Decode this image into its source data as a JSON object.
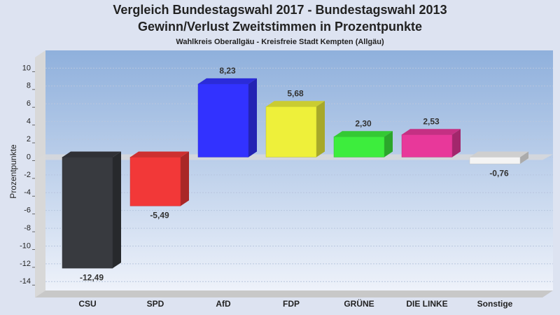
{
  "chart_data": {
    "type": "bar",
    "title": [
      "Vergleich Bundestagswahl 2017 - Bundestagswahl 2013",
      "Gewinn/Verlust Zweitstimmen in Prozentpunkte"
    ],
    "subtitle": "Wahlkreis Oberallgäu - Kreisfreie Stadt Kempten (Allgäu)",
    "y_label": "Prozentpunkte",
    "categories": [
      "CSU",
      "SPD",
      "AfD",
      "FDP",
      "GRÜNE",
      "DIE LINKE",
      "Sonstige"
    ],
    "values": [
      -12.49,
      -5.49,
      8.23,
      5.68,
      2.3,
      2.53,
      -0.76
    ],
    "value_labels": [
      "-12,49",
      "-5,49",
      "8,23",
      "5,68",
      "2,30",
      "2,53",
      "-0,76"
    ],
    "colors": [
      "#383a3f",
      "#f23838",
      "#3232ff",
      "#eef03a",
      "#3ded3d",
      "#e8389a",
      "#f4f4f4"
    ],
    "ylim": [
      -15,
      12
    ],
    "yticks": [
      -14,
      -12,
      -10,
      -8,
      -6,
      -4,
      -2,
      0,
      2,
      4,
      6,
      8,
      10
    ],
    "grid": true
  }
}
